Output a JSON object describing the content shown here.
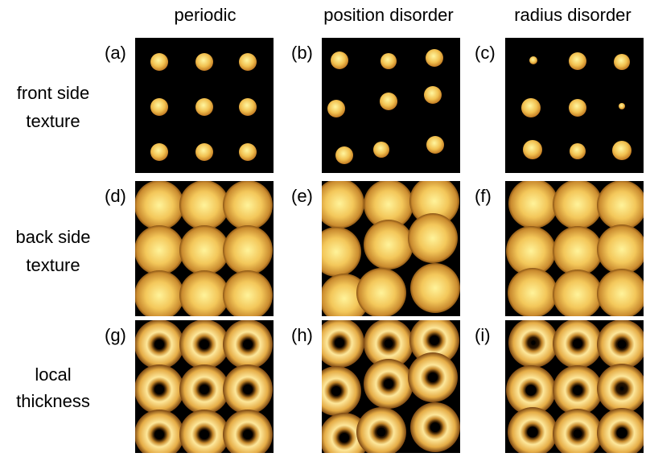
{
  "column_headers": [
    "periodic",
    "position disorder",
    "radius disorder"
  ],
  "row_labels": [
    [
      "front side",
      "texture"
    ],
    [
      "back side",
      "texture"
    ],
    [
      "local",
      "thickness"
    ]
  ],
  "panels": [
    "(a)",
    "(b)",
    "(c)",
    "(d)",
    "(e)",
    "(f)",
    "(g)",
    "(h)",
    "(i)"
  ]
}
